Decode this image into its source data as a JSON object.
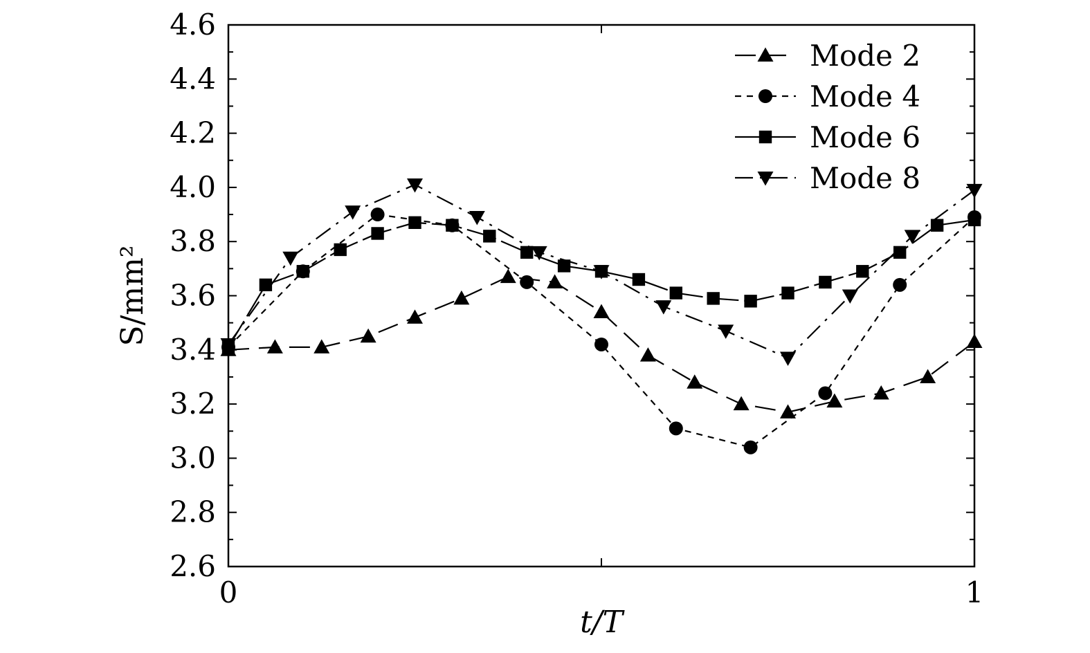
{
  "chart_data": {
    "type": "line",
    "xlabel": "t/T",
    "ylabel": "S/mm²",
    "xlim": [
      0,
      1
    ],
    "ylim": [
      2.6,
      4.6
    ],
    "x_ticks": [
      0,
      0.5,
      1
    ],
    "x_tick_labels": [
      "0",
      "",
      "1"
    ],
    "y_ticks": [
      2.6,
      2.8,
      3.0,
      3.2,
      3.4,
      3.6,
      3.8,
      4.0,
      4.2,
      4.4,
      4.6
    ],
    "y_tick_labels": [
      "2.6",
      "2.8",
      "3.0",
      "3.2",
      "3.4",
      "3.6",
      "3.8",
      "4.0",
      "4.2",
      "4.4",
      "4.6"
    ],
    "grid": false,
    "legend_position": "top-right",
    "series": [
      {
        "name": "Mode 2",
        "marker": "triangle-up",
        "dash": "long-dash",
        "x": [
          0,
          0.0625,
          0.125,
          0.1875,
          0.25,
          0.3125,
          0.375,
          0.4375,
          0.5,
          0.5625,
          0.625,
          0.6875,
          0.75,
          0.8125,
          0.875,
          0.9375,
          1
        ],
        "y": [
          3.4,
          3.41,
          3.41,
          3.45,
          3.52,
          3.59,
          3.67,
          3.65,
          3.54,
          3.38,
          3.28,
          3.2,
          3.17,
          3.21,
          3.24,
          3.3,
          3.43
        ]
      },
      {
        "name": "Mode 4",
        "marker": "circle",
        "dash": "short-dash",
        "x": [
          0,
          0.1,
          0.2,
          0.3,
          0.4,
          0.5,
          0.6,
          0.7,
          0.8,
          0.9,
          1
        ],
        "y": [
          3.41,
          3.69,
          3.9,
          3.86,
          3.65,
          3.42,
          3.11,
          3.04,
          3.24,
          3.64,
          3.89
        ]
      },
      {
        "name": "Mode 6",
        "marker": "square",
        "dash": "solid-dash",
        "x": [
          0,
          0.05,
          0.1,
          0.15,
          0.2,
          0.25,
          0.3,
          0.35,
          0.4,
          0.45,
          0.5,
          0.55,
          0.6,
          0.65,
          0.7,
          0.75,
          0.8,
          0.85,
          0.9,
          0.95,
          1
        ],
        "y": [
          3.41,
          3.64,
          3.69,
          3.77,
          3.83,
          3.87,
          3.86,
          3.82,
          3.76,
          3.71,
          3.69,
          3.66,
          3.61,
          3.59,
          3.58,
          3.61,
          3.65,
          3.69,
          3.76,
          3.86,
          3.88
        ]
      },
      {
        "name": "Mode 8",
        "marker": "triangle-down",
        "dash": "dash-dot",
        "x": [
          0,
          0.0833,
          0.1667,
          0.25,
          0.3333,
          0.4167,
          0.5,
          0.5833,
          0.6667,
          0.75,
          0.8333,
          0.9167,
          1
        ],
        "y": [
          3.42,
          3.74,
          3.91,
          4.01,
          3.89,
          3.76,
          3.69,
          3.56,
          3.47,
          3.37,
          3.6,
          3.82,
          3.99
        ]
      }
    ]
  }
}
